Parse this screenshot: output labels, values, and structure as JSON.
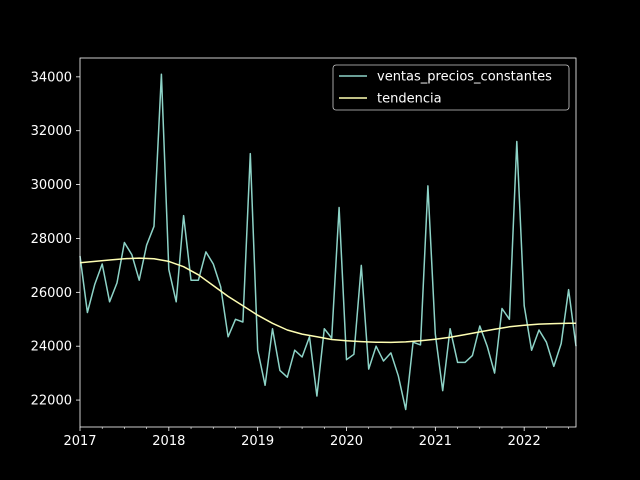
{
  "chart_data": {
    "type": "line",
    "title": "",
    "xlabel": "",
    "ylabel": "",
    "xlim": [
      "2017-01",
      "2022-08"
    ],
    "ylim": [
      21000,
      34700
    ],
    "x_ticks": [
      "2017",
      "2018",
      "2019",
      "2020",
      "2021",
      "2022"
    ],
    "y_ticks": [
      22000,
      24000,
      26000,
      28000,
      30000,
      32000,
      34000
    ],
    "grid": false,
    "legend_position": "top-right",
    "background": "#000000",
    "series": [
      {
        "name": "ventas_precios_constantes",
        "color": "#8dd3c7",
        "x": [
          "2017-01",
          "2017-02",
          "2017-03",
          "2017-04",
          "2017-05",
          "2017-06",
          "2017-07",
          "2017-08",
          "2017-09",
          "2017-10",
          "2017-11",
          "2017-12",
          "2018-01",
          "2018-02",
          "2018-03",
          "2018-04",
          "2018-05",
          "2018-06",
          "2018-07",
          "2018-08",
          "2018-09",
          "2018-10",
          "2018-11",
          "2018-12",
          "2019-01",
          "2019-02",
          "2019-03",
          "2019-04",
          "2019-05",
          "2019-06",
          "2019-07",
          "2019-08",
          "2019-09",
          "2019-10",
          "2019-11",
          "2019-12",
          "2020-01",
          "2020-02",
          "2020-03",
          "2020-04",
          "2020-05",
          "2020-06",
          "2020-07",
          "2020-08",
          "2020-09",
          "2020-10",
          "2020-11",
          "2020-12",
          "2021-01",
          "2021-02",
          "2021-03",
          "2021-04",
          "2021-05",
          "2021-06",
          "2021-07",
          "2021-08",
          "2021-09",
          "2021-10",
          "2021-11",
          "2021-12",
          "2022-01",
          "2022-02",
          "2022-03",
          "2022-04",
          "2022-05",
          "2022-06",
          "2022-07",
          "2022-08"
        ],
        "values": [
          27350,
          25250,
          26300,
          27050,
          25650,
          26350,
          27850,
          27400,
          26450,
          27750,
          28450,
          34100,
          26850,
          25650,
          28850,
          26450,
          26450,
          27500,
          27050,
          26200,
          24350,
          25000,
          24900,
          31150,
          23850,
          22550,
          24650,
          23100,
          22850,
          23850,
          23600,
          24350,
          22150,
          24650,
          24300,
          29150,
          23500,
          23700,
          27000,
          23150,
          24000,
          23450,
          23750,
          22900,
          21650,
          24150,
          24050,
          29950,
          24450,
          22350,
          24650,
          23400,
          23400,
          23650,
          24750,
          24000,
          23000,
          25400,
          25000,
          31600,
          25500,
          23850,
          24600,
          24150,
          23250,
          24100,
          26100,
          24000
        ]
      },
      {
        "name": "tendencia",
        "color": "#ffffb3",
        "x": [
          "2017-01",
          "2017-03",
          "2017-05",
          "2017-07",
          "2017-09",
          "2017-11",
          "2018-01",
          "2018-03",
          "2018-05",
          "2018-07",
          "2018-09",
          "2018-11",
          "2019-01",
          "2019-03",
          "2019-05",
          "2019-07",
          "2019-09",
          "2019-11",
          "2020-01",
          "2020-03",
          "2020-05",
          "2020-07",
          "2020-09",
          "2020-11",
          "2021-01",
          "2021-03",
          "2021-05",
          "2021-07",
          "2021-09",
          "2021-11",
          "2022-01",
          "2022-03",
          "2022-05",
          "2022-07",
          "2022-08"
        ],
        "values": [
          27100,
          27150,
          27200,
          27250,
          27270,
          27250,
          27150,
          26950,
          26650,
          26250,
          25850,
          25500,
          25150,
          24850,
          24600,
          24450,
          24350,
          24250,
          24200,
          24170,
          24150,
          24140,
          24160,
          24200,
          24260,
          24330,
          24430,
          24530,
          24630,
          24720,
          24780,
          24820,
          24840,
          24850,
          24850
        ]
      }
    ]
  }
}
